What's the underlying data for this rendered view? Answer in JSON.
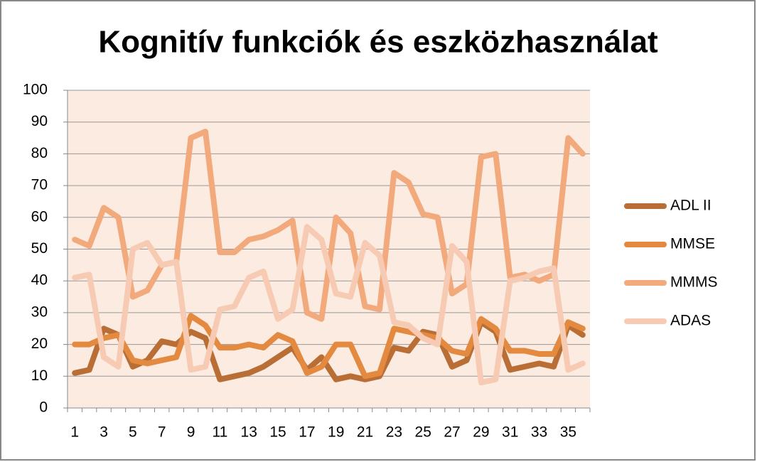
{
  "chart_data": {
    "type": "line",
    "title": "Kognitív funkciók és eszközhasználat",
    "categories": [
      1,
      null,
      3,
      null,
      5,
      null,
      7,
      null,
      9,
      null,
      11,
      null,
      13,
      null,
      15,
      null,
      17,
      null,
      19,
      null,
      21,
      null,
      23,
      null,
      25,
      null,
      27,
      null,
      29,
      null,
      31,
      null,
      33,
      null,
      35,
      null
    ],
    "ylim": [
      0,
      100
    ],
    "yticks": [
      0,
      10,
      20,
      30,
      40,
      50,
      60,
      70,
      80,
      90,
      100
    ],
    "grid": true,
    "legend": "right",
    "series": [
      {
        "name": "ADL II",
        "color": "#b86e35",
        "values": [
          11,
          12,
          25,
          23,
          13,
          15,
          21,
          20,
          24,
          22,
          9,
          10,
          11,
          13,
          16,
          19,
          12,
          16,
          9,
          10,
          9,
          10,
          19,
          18,
          24,
          23,
          13,
          15,
          27,
          24,
          12,
          13,
          14,
          13,
          26,
          23
        ]
      },
      {
        "name": "MMSE",
        "color": "#e38a40",
        "values": [
          20,
          20,
          22,
          23,
          15,
          14,
          15,
          16,
          29,
          26,
          19,
          19,
          20,
          19,
          23,
          21,
          11,
          13,
          20,
          20,
          10,
          11,
          25,
          24,
          23,
          22,
          18,
          17,
          28,
          25,
          18,
          18,
          17,
          17,
          27,
          25
        ]
      },
      {
        "name": "MMMS",
        "color": "#f2aa7c",
        "values": [
          53,
          51,
          63,
          60,
          35,
          37,
          45,
          46,
          85,
          87,
          49,
          49,
          53,
          54,
          56,
          59,
          30,
          28,
          60,
          55,
          32,
          31,
          74,
          71,
          61,
          60,
          36,
          39,
          79,
          80,
          41,
          42,
          40,
          42,
          85,
          80
        ]
      },
      {
        "name": "ADAS",
        "color": "#f7cbb3",
        "values": [
          41,
          42,
          16,
          13,
          50,
          52,
          45,
          46,
          12,
          13,
          31,
          32,
          41,
          43,
          28,
          31,
          57,
          53,
          36,
          35,
          52,
          48,
          27,
          26,
          22,
          20,
          51,
          46,
          8,
          9,
          40,
          41,
          43,
          44,
          12,
          14
        ]
      }
    ]
  }
}
